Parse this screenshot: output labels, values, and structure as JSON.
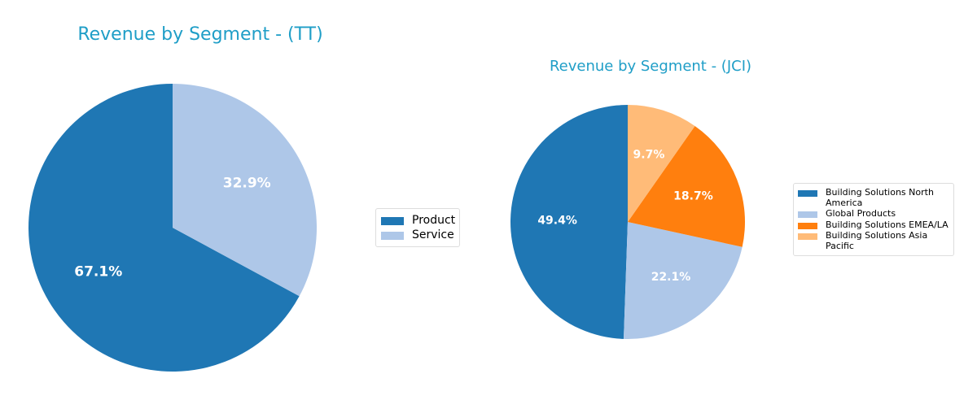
{
  "chart_data": [
    {
      "type": "pie",
      "title": "Revenue by Segment - (TT)",
      "categories": [
        "Product",
        "Service"
      ],
      "values": [
        67.1,
        32.9
      ],
      "labels": [
        "67.1%",
        "32.9%"
      ],
      "colors": [
        "#1f77b4",
        "#aec7e8"
      ],
      "start_angle_deg": 90,
      "direction": "counterclockwise",
      "legend_position": "right"
    },
    {
      "type": "pie",
      "title": "Revenue by Segment - (JCI)",
      "categories": [
        "Building Solutions North America",
        "Global Products",
        "Building Solutions EMEA/LA",
        "Building Solutions Asia Pacific"
      ],
      "legend_lines": [
        [
          "Building Solutions North",
          "America"
        ],
        [
          "Global Products"
        ],
        [
          "Building Solutions EMEA/LA"
        ],
        [
          "Building Solutions Asia",
          "Pacific"
        ]
      ],
      "values": [
        49.4,
        22.1,
        18.7,
        9.7
      ],
      "labels": [
        "49.4%",
        "22.1%",
        "18.7%",
        "9.7%"
      ],
      "colors": [
        "#1f77b4",
        "#aec7e8",
        "#ff7f0e",
        "#ffbb78"
      ],
      "start_angle_deg": 90,
      "direction": "counterclockwise",
      "legend_position": "right"
    }
  ]
}
